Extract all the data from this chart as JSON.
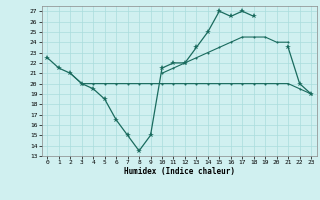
{
  "title": "",
  "xlabel": "Humidex (Indice chaleur)",
  "x_values": [
    0,
    1,
    2,
    3,
    4,
    5,
    6,
    7,
    8,
    9,
    10,
    11,
    12,
    13,
    14,
    15,
    16,
    17,
    18,
    19,
    20,
    21,
    22,
    23
  ],
  "line1_y": [
    22.5,
    21.5,
    21.0,
    20.0,
    19.5,
    18.5,
    16.5,
    15.0,
    13.5,
    15.0,
    21.5,
    22.0,
    22.0,
    23.5,
    25.0,
    27.0,
    26.5,
    27.0,
    26.5,
    null,
    null,
    23.5,
    20.0,
    19.0
  ],
  "line2_y": [
    null,
    null,
    21.0,
    20.0,
    20.0,
    20.0,
    20.0,
    20.0,
    20.0,
    20.0,
    20.0,
    20.0,
    20.0,
    20.0,
    20.0,
    20.0,
    20.0,
    20.0,
    20.0,
    20.0,
    20.0,
    20.0,
    19.5,
    19.0
  ],
  "line3_y": [
    null,
    null,
    null,
    null,
    null,
    null,
    null,
    null,
    null,
    null,
    21.0,
    21.5,
    22.0,
    22.5,
    23.0,
    23.5,
    24.0,
    24.5,
    24.5,
    24.5,
    24.0,
    24.0,
    null,
    null
  ],
  "ylim": [
    13,
    27.5
  ],
  "xlim": [
    -0.5,
    23.5
  ],
  "yticks": [
    13,
    14,
    15,
    16,
    17,
    18,
    19,
    20,
    21,
    22,
    23,
    24,
    25,
    26,
    27
  ],
  "xticks": [
    0,
    1,
    2,
    3,
    4,
    5,
    6,
    7,
    8,
    9,
    10,
    11,
    12,
    13,
    14,
    15,
    16,
    17,
    18,
    19,
    20,
    21,
    22,
    23
  ],
  "line_color": "#1a6b5e",
  "bg_color": "#d0f0f0",
  "grid_color": "#aadddd"
}
